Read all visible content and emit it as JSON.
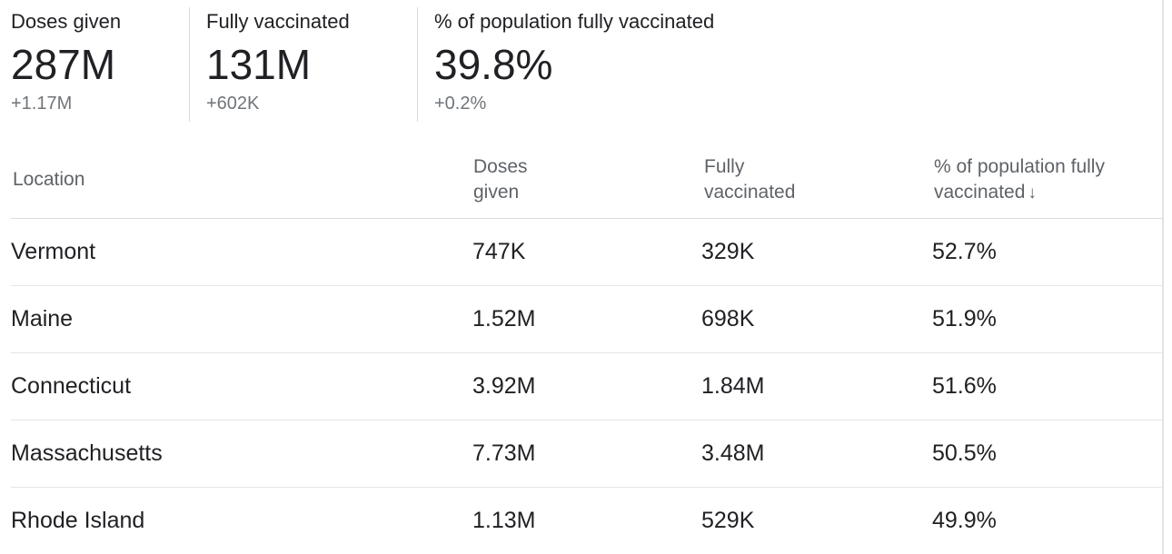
{
  "stats": [
    {
      "label": "Doses given",
      "value": "287M",
      "delta": "+1.17M"
    },
    {
      "label": "Fully vaccinated",
      "value": "131M",
      "delta": "+602K"
    },
    {
      "label": "% of population fully vaccinated",
      "value": "39.8%",
      "delta": "+0.2%"
    }
  ],
  "table": {
    "headers": {
      "location": "Location",
      "doses_line1": "Doses",
      "doses_line2": "given",
      "fully_line1": "Fully",
      "fully_line2": "vaccinated",
      "pct_line1": "% of population fully",
      "pct_line2": "vaccinated",
      "sort_arrow": "↓"
    },
    "sorted_by": "% of population fully vaccinated",
    "sort_direction": "descending",
    "rows": [
      {
        "location": "Vermont",
        "doses": "747K",
        "fully": "329K",
        "pct": "52.7%"
      },
      {
        "location": "Maine",
        "doses": "1.52M",
        "fully": "698K",
        "pct": "51.9%"
      },
      {
        "location": "Connecticut",
        "doses": "3.92M",
        "fully": "1.84M",
        "pct": "51.6%"
      },
      {
        "location": "Massachusetts",
        "doses": "7.73M",
        "fully": "3.48M",
        "pct": "50.5%"
      },
      {
        "location": "Rhode Island",
        "doses": "1.13M",
        "fully": "529K",
        "pct": "49.9%"
      }
    ]
  }
}
